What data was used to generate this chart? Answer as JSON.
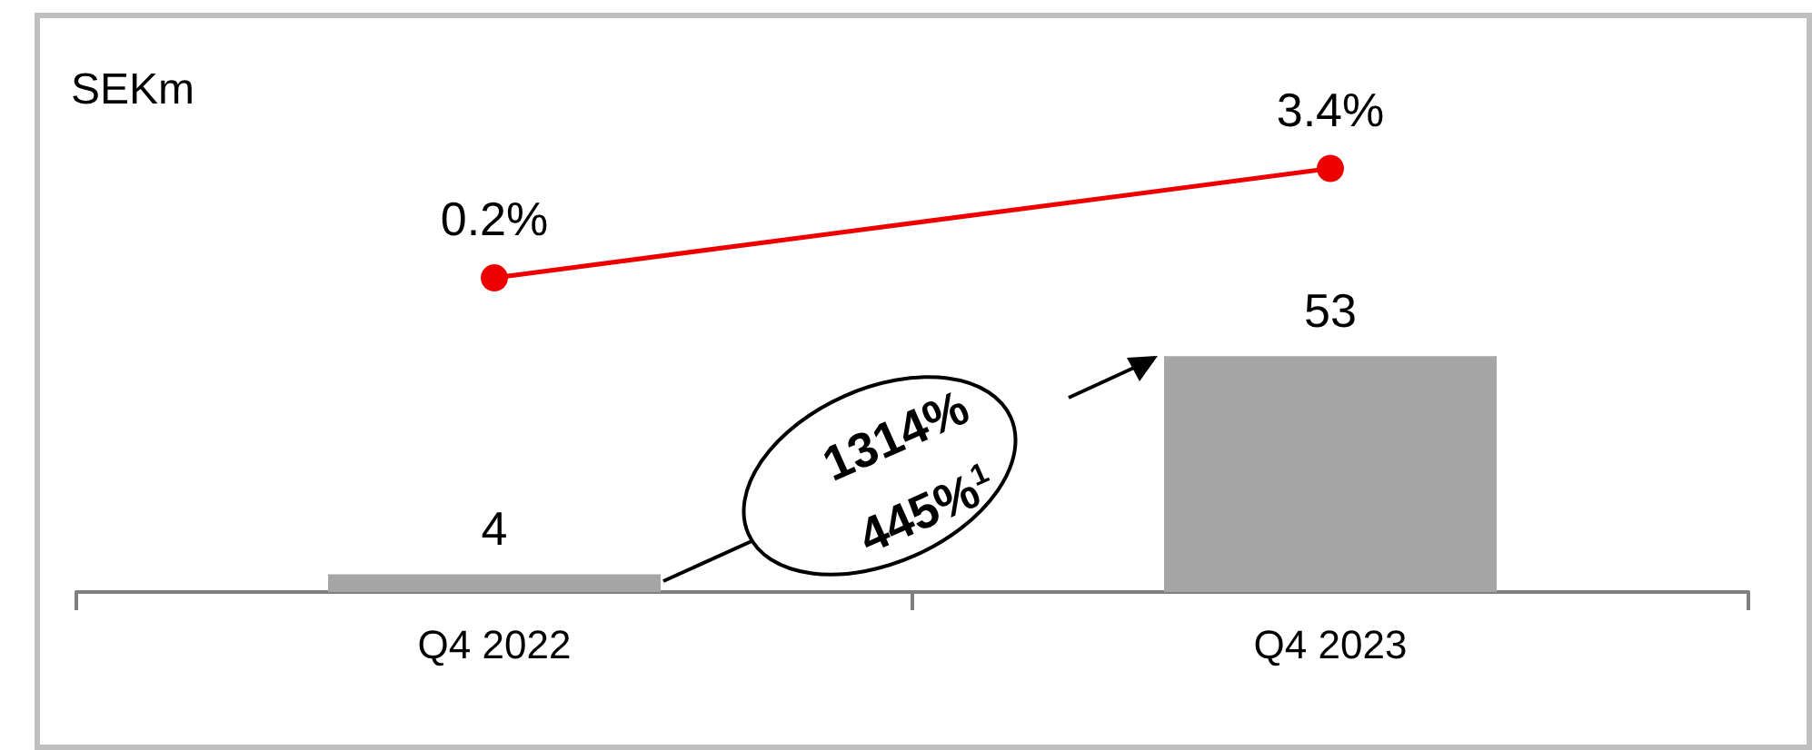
{
  "chart_data": {
    "type": "bar",
    "categories": [
      "Q4 2022",
      "Q4 2023"
    ],
    "series": [
      {
        "color": "#a6a6a6",
        "values": [
          4,
          53
        ]
      },
      {
        "type": "line",
        "axis": "y2",
        "color": "#ee0000",
        "marker": "circle",
        "values": [
          0.2,
          3.4
        ],
        "value_labels": [
          "0.2%",
          "3.4%"
        ]
      }
    ],
    "ylim": [
      0,
      129
    ],
    "y2lim": [
      -9,
      7.8
    ],
    "tick_labels": "x",
    "data_labels": true,
    "grid": false,
    "annotations": [
      "SEKm",
      "1314%",
      "445%$^{1}$"
    ]
  }
}
